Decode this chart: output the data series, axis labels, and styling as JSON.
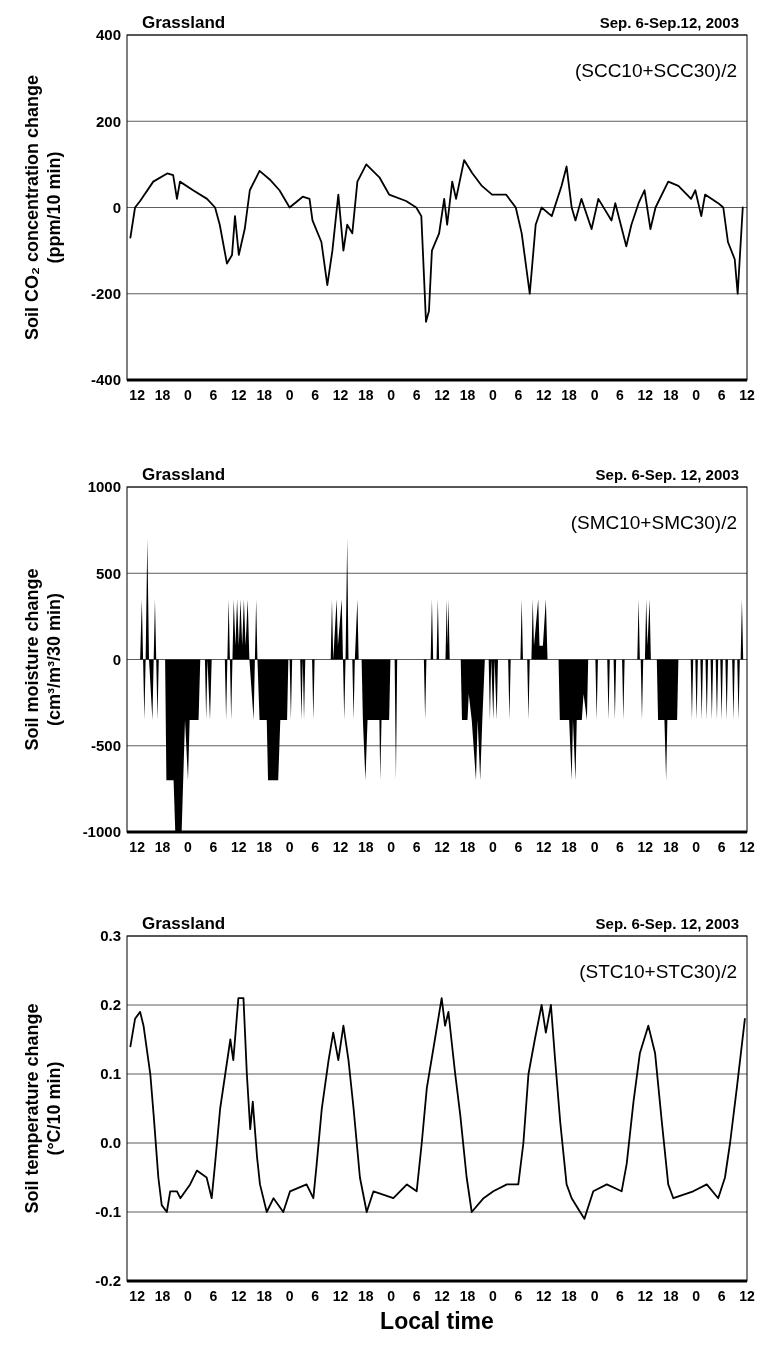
{
  "chart_data": [
    {
      "type": "line",
      "title": "Grassland",
      "subtitle": "Sep. 6-Sep.12, 2003",
      "annotations": [
        "(SCC10+SCC30)/2"
      ],
      "ylabel": "Soil CO₂ concentration change\n(ppm/10 min)",
      "color": "#000000",
      "grid": "y",
      "xlim": [
        "2003-09-06T09:36",
        "2003-09-12T12:00"
      ],
      "ylim": [
        -400,
        400
      ],
      "yticks": [
        -400,
        -200,
        0,
        200,
        400
      ],
      "xticks": [
        {
          "value": "2003-09-06T12:00",
          "label": "12"
        },
        {
          "value": "2003-09-06T18:00",
          "label": "18"
        },
        {
          "value": "2003-09-07T00:00",
          "label": "0"
        },
        {
          "value": "2003-09-07T06:00",
          "label": "6"
        },
        {
          "value": "2003-09-07T12:00",
          "label": "12"
        },
        {
          "value": "2003-09-07T18:00",
          "label": "18"
        },
        {
          "value": "2003-09-08T00:00",
          "label": "0"
        },
        {
          "value": "2003-09-08T06:00",
          "label": "6"
        },
        {
          "value": "2003-09-08T12:00",
          "label": "12"
        },
        {
          "value": "2003-09-08T18:00",
          "label": "18"
        },
        {
          "value": "2003-09-09T00:00",
          "label": "0"
        },
        {
          "value": "2003-09-09T06:00",
          "label": "6"
        },
        {
          "value": "2003-09-09T12:00",
          "label": "12"
        },
        {
          "value": "2003-09-09T18:00",
          "label": "18"
        },
        {
          "value": "2003-09-10T00:00",
          "label": "0"
        },
        {
          "value": "2003-09-10T06:00",
          "label": "6"
        },
        {
          "value": "2003-09-10T12:00",
          "label": "12"
        },
        {
          "value": "2003-09-10T18:00",
          "label": "18"
        },
        {
          "value": "2003-09-11T00:00",
          "label": "0"
        },
        {
          "value": "2003-09-11T06:00",
          "label": "6"
        },
        {
          "value": "2003-09-11T12:00",
          "label": "12"
        },
        {
          "value": "2003-09-11T18:00",
          "label": "18"
        },
        {
          "value": "2003-09-12T00:00",
          "label": "0"
        },
        {
          "value": "2003-09-12T06:00",
          "label": "6"
        },
        {
          "value": "2003-09-12T12:00",
          "label": "12"
        }
      ],
      "x": [
        "2003-09-06T10:24",
        "2003-09-06T11:30",
        "2003-09-06T12:42",
        "2003-09-06T15:48",
        "2003-09-06T19:06",
        "2003-09-06T20:30",
        "2003-09-06T21:24",
        "2003-09-06T22:06",
        "2003-09-07T01:12",
        "2003-09-07T04:30",
        "2003-09-07T06:24",
        "2003-09-07T07:30",
        "2003-09-07T09:12",
        "2003-09-07T10:24",
        "2003-09-07T11:06",
        "2003-09-07T12:00",
        "2003-09-07T13:24",
        "2003-09-07T14:36",
        "2003-09-07T16:54",
        "2003-09-07T19:18",
        "2003-09-07T21:36",
        "2003-09-08T00:00",
        "2003-09-08T03:06",
        "2003-09-08T04:42",
        "2003-09-08T05:24",
        "2003-09-08T07:30",
        "2003-09-08T08:54",
        "2003-09-08T10:06",
        "2003-09-08T11:30",
        "2003-09-08T12:42",
        "2003-09-08T13:36",
        "2003-09-08T14:48",
        "2003-09-08T16:00",
        "2003-09-08T18:06",
        "2003-09-08T21:12",
        "2003-09-08T23:30",
        "2003-09-09T03:30",
        "2003-09-09T05:54",
        "2003-09-09T07:06",
        "2003-09-09T08:12",
        "2003-09-09T08:54",
        "2003-09-09T09:36",
        "2003-09-09T11:18",
        "2003-09-09T12:30",
        "2003-09-09T13:12",
        "2003-09-09T14:24",
        "2003-09-09T15:18",
        "2003-09-09T17:12",
        "2003-09-09T19:06",
        "2003-09-09T21:24",
        "2003-09-09T23:48",
        "2003-09-10T03:06",
        "2003-09-10T05:24",
        "2003-09-10T06:48",
        "2003-09-10T08:42",
        "2003-09-10T10:06",
        "2003-09-10T11:30",
        "2003-09-10T13:54",
        "2003-09-10T16:12",
        "2003-09-10T17:24",
        "2003-09-10T18:36",
        "2003-09-10T19:30",
        "2003-09-10T20:54",
        "2003-09-10T23:18",
        "2003-09-11T00:54",
        "2003-09-11T04:00",
        "2003-09-11T04:54",
        "2003-09-11T07:30",
        "2003-09-11T08:42",
        "2003-09-11T10:24",
        "2003-09-11T11:48",
        "2003-09-11T13:12",
        "2003-09-11T14:24",
        "2003-09-11T17:24",
        "2003-09-11T19:48",
        "2003-09-11T22:48",
        "2003-09-11T23:48",
        "2003-09-12T01:12",
        "2003-09-12T02:06",
        "2003-09-12T05:12",
        "2003-09-12T06:24",
        "2003-09-12T07:30",
        "2003-09-12T09:06",
        "2003-09-12T09:48",
        "2003-09-12T11:00"
      ],
      "values": [
        -70,
        0,
        15,
        60,
        79,
        75,
        20,
        60,
        40,
        20,
        0,
        -40,
        -130,
        -110,
        -20,
        -110,
        -50,
        40,
        85,
        65,
        40,
        0,
        25,
        20,
        -30,
        -80,
        -180,
        -100,
        30,
        -100,
        -40,
        -60,
        60,
        100,
        70,
        30,
        15,
        0,
        -20,
        -265,
        -240,
        -100,
        -60,
        20,
        -40,
        60,
        20,
        110,
        80,
        50,
        30,
        30,
        0,
        -60,
        -200,
        -40,
        0,
        -20,
        50,
        95,
        0,
        -30,
        20,
        -50,
        20,
        -30,
        10,
        -90,
        -40,
        10,
        40,
        -50,
        0,
        60,
        50,
        20,
        40,
        -20,
        30,
        10,
        0,
        -80,
        -120,
        -200,
        0
      ]
    },
    {
      "type": "area",
      "title": "Grassland",
      "subtitle": "Sep. 6-Sep. 12, 2003",
      "annotations": [
        "(SMC10+SMC30)/2"
      ],
      "ylabel": "Soil moisture change\n(cm³/m³/30 min)",
      "color": "#000000",
      "grid": "y",
      "xlim": [
        "2003-09-06T09:36",
        "2003-09-12T12:00"
      ],
      "ylim": [
        -1000,
        1000
      ],
      "yticks": [
        -1000,
        -500,
        0,
        500,
        1000
      ],
      "xticks": [
        {
          "value": "2003-09-06T12:00",
          "label": "12"
        },
        {
          "value": "2003-09-06T18:00",
          "label": "18"
        },
        {
          "value": "2003-09-07T00:00",
          "label": "0"
        },
        {
          "value": "2003-09-07T06:00",
          "label": "6"
        },
        {
          "value": "2003-09-07T12:00",
          "label": "12"
        },
        {
          "value": "2003-09-07T18:00",
          "label": "18"
        },
        {
          "value": "2003-09-08T00:00",
          "label": "0"
        },
        {
          "value": "2003-09-08T06:00",
          "label": "6"
        },
        {
          "value": "2003-09-08T12:00",
          "label": "12"
        },
        {
          "value": "2003-09-08T18:00",
          "label": "18"
        },
        {
          "value": "2003-09-09T00:00",
          "label": "0"
        },
        {
          "value": "2003-09-09T06:00",
          "label": "6"
        },
        {
          "value": "2003-09-09T12:00",
          "label": "12"
        },
        {
          "value": "2003-09-09T18:00",
          "label": "18"
        },
        {
          "value": "2003-09-10T00:00",
          "label": "0"
        },
        {
          "value": "2003-09-10T06:00",
          "label": "6"
        },
        {
          "value": "2003-09-10T12:00",
          "label": "12"
        },
        {
          "value": "2003-09-10T18:00",
          "label": "18"
        },
        {
          "value": "2003-09-11T00:00",
          "label": "0"
        },
        {
          "value": "2003-09-11T06:00",
          "label": "6"
        },
        {
          "value": "2003-09-11T12:00",
          "label": "12"
        },
        {
          "value": "2003-09-11T18:00",
          "label": "18"
        },
        {
          "value": "2003-09-12T00:00",
          "label": "0"
        },
        {
          "value": "2003-09-12T06:00",
          "label": "6"
        },
        {
          "value": "2003-09-12T12:00",
          "label": "12"
        }
      ],
      "x": [
        "2003-09-06T12:42",
        "2003-09-06T13:06",
        "2003-09-06T13:24",
        "2003-09-06T13:42",
        "2003-09-06T14:00",
        "2003-09-06T14:24",
        "2003-09-06T14:48",
        "2003-09-06T15:36",
        "2003-09-06T15:54",
        "2003-09-06T16:12",
        "2003-09-06T16:30",
        "2003-09-06T16:48",
        "2003-09-06T17:06",
        "2003-09-06T18:36",
        "2003-09-06T18:54",
        "2003-09-06T20:36",
        "2003-09-06T21:00",
        "2003-09-06T22:30",
        "2003-09-06T23:18",
        "2003-09-07T00:00",
        "2003-09-07T00:24",
        "2003-09-07T02:30",
        "2003-09-07T02:54",
        "2003-09-07T04:00",
        "2003-09-07T04:18",
        "2003-09-07T04:36",
        "2003-09-07T05:12",
        "2003-09-07T05:36",
        "2003-09-07T08:42",
        "2003-09-07T09:00",
        "2003-09-07T09:18",
        "2003-09-07T09:36",
        "2003-09-07T09:54",
        "2003-09-07T10:12",
        "2003-09-07T10:30",
        "2003-09-07T10:48",
        "2003-09-07T11:12",
        "2003-09-07T11:36",
        "2003-09-07T12:00",
        "2003-09-07T12:24",
        "2003-09-07T12:48",
        "2003-09-07T13:12",
        "2003-09-07T13:36",
        "2003-09-07T14:06",
        "2003-09-07T14:30",
        "2003-09-07T15:30",
        "2003-09-07T15:48",
        "2003-09-07T16:06",
        "2003-09-07T16:24",
        "2003-09-07T16:54",
        "2003-09-07T18:36",
        "2003-09-07T18:54",
        "2003-09-07T21:18",
        "2003-09-07T21:48",
        "2003-09-07T23:24",
        "2003-09-07T23:42",
        "2003-09-08T00:00",
        "2003-09-08T00:18",
        "2003-09-08T00:36",
        "2003-09-08T02:30",
        "2003-09-08T02:48",
        "2003-09-08T03:06",
        "2003-09-08T03:24",
        "2003-09-08T03:42",
        "2003-09-08T05:18",
        "2003-09-08T05:36",
        "2003-09-08T05:54",
        "2003-09-08T09:42",
        "2003-09-08T10:00",
        "2003-09-08T10:18",
        "2003-09-08T11:06",
        "2003-09-08T11:24",
        "2003-09-08T12:18",
        "2003-09-08T12:36",
        "2003-09-08T12:54",
        "2003-09-08T13:12",
        "2003-09-08T13:36",
        "2003-09-08T13:54",
        "2003-09-08T14:48",
        "2003-09-08T15:06",
        "2003-09-08T15:24",
        "2003-09-08T16:00",
        "2003-09-08T16:18",
        "2003-09-08T17:00",
        "2003-09-08T17:18",
        "2003-09-08T17:54",
        "2003-09-08T18:24",
        "2003-09-08T21:12",
        "2003-09-08T21:24",
        "2003-09-08T21:42",
        "2003-09-08T23:30",
        "2003-09-08T23:48",
        "2003-09-09T00:48",
        "2003-09-09T01:06",
        "2003-09-09T01:24",
        "2003-09-09T07:42",
        "2003-09-09T08:00",
        "2003-09-09T08:18",
        "2003-09-09T09:18",
        "2003-09-09T09:36",
        "2003-09-09T09:54",
        "2003-09-09T10:42",
        "2003-09-09T11:00",
        "2003-09-09T11:18",
        "2003-09-09T12:48",
        "2003-09-09T13:06",
        "2003-09-09T13:18",
        "2003-09-09T13:30",
        "2003-09-09T13:48",
        "2003-09-09T16:24",
        "2003-09-09T16:42",
        "2003-09-09T18:00",
        "2003-09-09T18:18",
        "2003-09-09T19:00",
        "2003-09-09T20:00",
        "2003-09-09T20:24",
        "2003-09-09T21:00",
        "2003-09-09T21:30",
        "2003-09-09T22:06",
        "2003-09-09T23:00",
        "2003-09-09T23:18",
        "2003-09-09T23:36",
        "2003-09-10T00:06",
        "2003-09-10T00:24",
        "2003-09-10T00:54",
        "2003-09-10T01:12",
        "2003-09-10T03:36",
        "2003-09-10T03:54",
        "2003-09-10T04:12",
        "2003-09-10T06:30",
        "2003-09-10T06:48",
        "2003-09-10T07:06",
        "2003-09-10T08:06",
        "2003-09-10T08:24",
        "2003-09-10T08:42",
        "2003-09-10T09:06",
        "2003-09-10T09:24",
        "2003-09-10T09:42",
        "2003-09-10T10:42",
        "2003-09-10T11:00",
        "2003-09-10T11:48",
        "2003-09-10T12:30",
        "2003-09-10T12:54",
        "2003-09-10T15:30",
        "2003-09-10T15:48",
        "2003-09-10T18:00",
        "2003-09-10T18:36",
        "2003-09-10T18:54",
        "2003-09-10T19:30",
        "2003-09-10T19:48",
        "2003-09-10T21:00",
        "2003-09-10T21:24",
        "2003-09-10T22:12",
        "2003-09-10T22:30",
        "2003-09-11T00:12",
        "2003-09-11T00:30",
        "2003-09-11T00:48",
        "2003-09-11T03:00",
        "2003-09-11T03:18",
        "2003-09-11T03:36",
        "2003-09-11T04:30",
        "2003-09-11T04:48",
        "2003-09-11T05:06",
        "2003-09-11T06:30",
        "2003-09-11T06:48",
        "2003-09-11T07:06",
        "2003-09-11T10:06",
        "2003-09-11T10:24",
        "2003-09-11T10:42",
        "2003-09-11T10:54",
        "2003-09-11T11:12",
        "2003-09-11T11:30",
        "2003-09-11T11:54",
        "2003-09-11T12:12",
        "2003-09-11T12:30",
        "2003-09-11T13:00",
        "2003-09-11T13:18",
        "2003-09-11T14:42",
        "2003-09-11T15:00",
        "2003-09-11T16:30",
        "2003-09-11T16:54",
        "2003-09-11T17:12",
        "2003-09-11T19:30",
        "2003-09-11T19:48",
        "2003-09-11T22:42",
        "2003-09-11T23:00",
        "2003-09-11T23:18",
        "2003-09-11T23:48",
        "2003-09-12T00:06",
        "2003-09-12T00:24",
        "2003-09-12T01:00",
        "2003-09-12T01:18",
        "2003-09-12T01:36",
        "2003-09-12T02:12",
        "2003-09-12T02:30",
        "2003-09-12T02:48",
        "2003-09-12T03:24",
        "2003-09-12T03:42",
        "2003-09-12T04:00",
        "2003-09-12T04:36",
        "2003-09-12T04:54",
        "2003-09-12T05:12",
        "2003-09-12T05:42",
        "2003-09-12T06:00",
        "2003-09-12T06:18",
        "2003-09-12T06:54",
        "2003-09-12T07:12",
        "2003-09-12T07:30",
        "2003-09-12T08:30",
        "2003-09-12T08:48",
        "2003-09-12T09:06",
        "2003-09-12T09:42",
        "2003-09-12T10:00",
        "2003-09-12T10:18",
        "2003-09-12T10:30",
        "2003-09-12T10:48",
        "2003-09-12T11:06"
      ],
      "values": [
        0,
        350,
        0,
        -350,
        0,
        700,
        0,
        -350,
        0,
        350,
        0,
        -350,
        0,
        0,
        -700,
        -700,
        -1000,
        -1000,
        -350,
        -700,
        -350,
        -350,
        0,
        0,
        -350,
        0,
        -350,
        0,
        0,
        -350,
        0,
        350,
        0,
        -350,
        0,
        350,
        80,
        350,
        80,
        350,
        80,
        350,
        80,
        350,
        0,
        -350,
        0,
        350,
        0,
        -350,
        -350,
        -700,
        -700,
        -350,
        -350,
        0,
        0,
        -350,
        0,
        0,
        -350,
        0,
        -350,
        0,
        0,
        -350,
        0,
        0,
        350,
        0,
        350,
        80,
        350,
        0,
        -350,
        0,
        700,
        0,
        0,
        -350,
        0,
        350,
        0,
        0,
        -350,
        -700,
        -350,
        -350,
        -700,
        -350,
        -350,
        0,
        0,
        -700,
        0,
        0,
        -350,
        0,
        0,
        350,
        0,
        0,
        350,
        0,
        0,
        350,
        80,
        350,
        0,
        0,
        -350,
        -350,
        -200,
        -350,
        -700,
        -350,
        -700,
        -350,
        0,
        0,
        -350,
        0,
        -350,
        0,
        -350,
        0,
        0,
        -350,
        0,
        0,
        350,
        0,
        0,
        -350,
        0,
        0,
        350,
        80,
        350,
        80,
        80,
        350,
        0,
        0,
        -350,
        -350,
        -700,
        -350,
        -700,
        -350,
        -350,
        -200,
        -350,
        0,
        0,
        -350,
        0,
        0,
        -350,
        0,
        0,
        -350,
        0,
        0,
        -350,
        0,
        0,
        350,
        0,
        0,
        -350,
        0,
        0,
        350,
        80,
        350,
        0,
        0,
        -350,
        -350,
        -700,
        -350,
        -350,
        0,
        0,
        -350,
        0,
        0,
        -350,
        0,
        0,
        -350,
        0,
        0,
        -350,
        0,
        0,
        -350,
        0,
        0,
        -350,
        0,
        0,
        -350,
        0,
        0,
        -350,
        0,
        0,
        -350,
        0,
        0,
        -350,
        0,
        0,
        350,
        0
      ]
    },
    {
      "type": "line",
      "title": "Grassland",
      "subtitle": "Sep. 6-Sep. 12, 2003",
      "annotations": [
        "(STC10+STC30)/2"
      ],
      "ylabel": "Soil temperature change\n(°C/10 min)",
      "xlabel": "Local time",
      "color": "#000000",
      "grid": "y",
      "xlim": [
        "2003-09-06T09:36",
        "2003-09-12T12:00"
      ],
      "ylim": [
        -0.2,
        0.3
      ],
      "yticks": [
        {
          "value": -0.2,
          "label": "-0.2"
        },
        {
          "value": -0.1,
          "label": "-0.1"
        },
        {
          "value": 0,
          "label": "0.0"
        },
        {
          "value": 0.1,
          "label": "0.1"
        },
        {
          "value": 0.2,
          "label": "0.2"
        },
        {
          "value": 0.3,
          "label": "0.3"
        }
      ],
      "xticks": [
        {
          "value": "2003-09-06T12:00",
          "label": "12"
        },
        {
          "value": "2003-09-06T18:00",
          "label": "18"
        },
        {
          "value": "2003-09-07T00:00",
          "label": "0"
        },
        {
          "value": "2003-09-07T06:00",
          "label": "6"
        },
        {
          "value": "2003-09-07T12:00",
          "label": "12"
        },
        {
          "value": "2003-09-07T18:00",
          "label": "18"
        },
        {
          "value": "2003-09-08T00:00",
          "label": "0"
        },
        {
          "value": "2003-09-08T06:00",
          "label": "6"
        },
        {
          "value": "2003-09-08T12:00",
          "label": "12"
        },
        {
          "value": "2003-09-08T18:00",
          "label": "18"
        },
        {
          "value": "2003-09-09T00:00",
          "label": "0"
        },
        {
          "value": "2003-09-09T06:00",
          "label": "6"
        },
        {
          "value": "2003-09-09T12:00",
          "label": "12"
        },
        {
          "value": "2003-09-09T18:00",
          "label": "18"
        },
        {
          "value": "2003-09-10T00:00",
          "label": "0"
        },
        {
          "value": "2003-09-10T06:00",
          "label": "6"
        },
        {
          "value": "2003-09-10T12:00",
          "label": "12"
        },
        {
          "value": "2003-09-10T18:00",
          "label": "18"
        },
        {
          "value": "2003-09-11T00:00",
          "label": "0"
        },
        {
          "value": "2003-09-11T06:00",
          "label": "6"
        },
        {
          "value": "2003-09-11T12:00",
          "label": "12"
        },
        {
          "value": "2003-09-11T18:00",
          "label": "18"
        },
        {
          "value": "2003-09-12T00:00",
          "label": "0"
        },
        {
          "value": "2003-09-12T06:00",
          "label": "6"
        },
        {
          "value": "2003-09-12T12:00",
          "label": "12"
        }
      ],
      "x": [
        "2003-09-06T10:24",
        "2003-09-06T11:30",
        "2003-09-06T12:42",
        "2003-09-06T13:30",
        "2003-09-06T15:06",
        "2003-09-06T15:54",
        "2003-09-06T17:00",
        "2003-09-06T17:48",
        "2003-09-06T19:00",
        "2003-09-06T19:48",
        "2003-09-06T21:24",
        "2003-09-06T22:12",
        "2003-09-07T00:30",
        "2003-09-07T02:06",
        "2003-09-07T04:24",
        "2003-09-07T05:36",
        "2003-09-07T06:24",
        "2003-09-07T07:36",
        "2003-09-07T08:48",
        "2003-09-07T10:00",
        "2003-09-07T10:42",
        "2003-09-07T11:54",
        "2003-09-07T13:06",
        "2003-09-07T13:54",
        "2003-09-07T14:42",
        "2003-09-07T15:18",
        "2003-09-07T16:18",
        "2003-09-07T17:00",
        "2003-09-07T18:36",
        "2003-09-07T20:12",
        "2003-09-07T22:30",
        "2003-09-08T00:06",
        "2003-09-08T04:00",
        "2003-09-08T05:36",
        "2003-09-08T06:24",
        "2003-09-08T07:36",
        "2003-09-08T09:12",
        "2003-09-08T10:18",
        "2003-09-08T11:30",
        "2003-09-08T12:42",
        "2003-09-08T13:54",
        "2003-09-08T15:06",
        "2003-09-08T16:36",
        "2003-09-08T18:12",
        "2003-09-08T19:48",
        "2003-09-09T00:30",
        "2003-09-09T03:42",
        "2003-09-09T06:00",
        "2003-09-09T07:12",
        "2003-09-09T08:24",
        "2003-09-09T10:18",
        "2003-09-09T11:54",
        "2003-09-09T12:42",
        "2003-09-09T13:30",
        "2003-09-09T14:12",
        "2003-09-09T15:06",
        "2003-09-09T16:18",
        "2003-09-09T17:48",
        "2003-09-09T19:00",
        "2003-09-09T21:48",
        "2003-09-10T00:06",
        "2003-09-10T03:18",
        "2003-09-10T06:00",
        "2003-09-10T07:12",
        "2003-09-10T08:24",
        "2003-09-10T09:54",
        "2003-09-10T11:30",
        "2003-09-10T12:30",
        "2003-09-10T13:42",
        "2003-09-10T14:42",
        "2003-09-10T15:54",
        "2003-09-10T17:24",
        "2003-09-10T18:36",
        "2003-09-10T20:36",
        "2003-09-10T21:36",
        "2003-09-10T23:42",
        "2003-09-11T02:54",
        "2003-09-11T06:24",
        "2003-09-11T07:36",
        "2003-09-11T09:12",
        "2003-09-11T10:42",
        "2003-09-11T12:42",
        "2003-09-11T14:18",
        "2003-09-11T15:54",
        "2003-09-11T17:24",
        "2003-09-11T18:36",
        "2003-09-11T23:18",
        "2003-09-12T02:30",
        "2003-09-12T05:12",
        "2003-09-12T06:48",
        "2003-09-12T08:00",
        "2003-09-12T09:36",
        "2003-09-12T11:30"
      ],
      "values": [
        0.14,
        0.18,
        0.19,
        0.17,
        0.1,
        0.04,
        -0.05,
        -0.09,
        -0.1,
        -0.07,
        -0.07,
        -0.08,
        -0.06,
        -0.04,
        -0.05,
        -0.08,
        -0.03,
        0.05,
        0.1,
        0.15,
        0.12,
        0.21,
        0.21,
        0.1,
        0.02,
        0.06,
        -0.02,
        -0.06,
        -0.1,
        -0.08,
        -0.1,
        -0.07,
        -0.06,
        -0.08,
        -0.03,
        0.05,
        0.12,
        0.16,
        0.12,
        0.17,
        0.12,
        0.05,
        -0.05,
        -0.1,
        -0.07,
        -0.08,
        -0.06,
        -0.07,
        0.0,
        0.08,
        0.15,
        0.21,
        0.17,
        0.19,
        0.15,
        0.1,
        0.04,
        -0.05,
        -0.1,
        -0.08,
        -0.07,
        -0.06,
        -0.06,
        0.0,
        0.1,
        0.15,
        0.2,
        0.16,
        0.2,
        0.12,
        0.03,
        -0.06,
        -0.08,
        -0.1,
        -0.11,
        -0.07,
        -0.06,
        -0.07,
        -0.03,
        0.06,
        0.13,
        0.17,
        0.13,
        0.03,
        -0.06,
        -0.08,
        -0.07,
        -0.06,
        -0.08,
        -0.05,
        0.0,
        0.08,
        0.18
      ]
    }
  ]
}
